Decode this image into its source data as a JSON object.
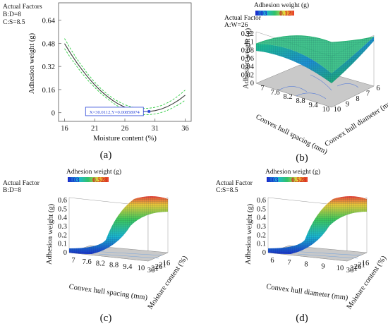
{
  "chart_data": [
    {
      "panel": "(a)",
      "type": "line",
      "title": "",
      "factors_text": [
        "Actual Factors",
        "B:D=8",
        "C:S=8.5"
      ],
      "xlabel": "Moisture content (%)",
      "ylabel": "Adhesion weight (g)",
      "xlim": [
        15,
        37
      ],
      "ylim": [
        -0.06,
        0.76
      ],
      "xticks": [
        "16",
        "21",
        "26",
        "31",
        "36"
      ],
      "yticks": [
        "0",
        "0.16",
        "0.32",
        "0.48",
        "0.64"
      ],
      "grid": false,
      "series": [
        {
          "style": "fit",
          "color": "#3a3a3a",
          "x": [
            16,
            17,
            18,
            19,
            20,
            21,
            22,
            23,
            24,
            25,
            26,
            27,
            28,
            29,
            30,
            31,
            32,
            33,
            34,
            35,
            36
          ],
          "y": [
            0.478,
            0.41,
            0.348,
            0.291,
            0.239,
            0.193,
            0.151,
            0.115,
            0.084,
            0.058,
            0.038,
            0.022,
            0.012,
            0.008,
            0.009,
            0.014,
            0.025,
            0.041,
            0.063,
            0.089,
            0.121
          ]
        },
        {
          "style": "ci-upper",
          "color": "#2ecc40",
          "x": [
            16,
            17,
            18,
            19,
            20,
            21,
            22,
            23,
            24,
            25,
            26,
            27,
            28,
            29,
            30,
            31,
            32,
            33,
            34,
            35,
            36
          ],
          "y": [
            0.513,
            0.441,
            0.375,
            0.315,
            0.26,
            0.211,
            0.168,
            0.131,
            0.1,
            0.075,
            0.055,
            0.041,
            0.032,
            0.029,
            0.031,
            0.037,
            0.049,
            0.067,
            0.091,
            0.12,
            0.156
          ]
        },
        {
          "style": "ci-lower",
          "color": "#2ecc40",
          "x": [
            16,
            17,
            18,
            19,
            20,
            21,
            22,
            23,
            24,
            25,
            26,
            27,
            28,
            29,
            30,
            31,
            32,
            33,
            34,
            35,
            36
          ],
          "y": [
            0.443,
            0.379,
            0.321,
            0.267,
            0.218,
            0.175,
            0.134,
            0.099,
            0.068,
            0.041,
            0.021,
            0.003,
            -0.008,
            -0.013,
            -0.013,
            -0.009,
            0.001,
            0.015,
            0.035,
            0.058,
            0.086
          ]
        }
      ],
      "annotation": {
        "text": "X=30.0112,Y=0.00858974",
        "x": 30.0112,
        "y": 0.00858974
      }
    },
    {
      "panel": "(b)",
      "type": "surface",
      "factors_text": [
        "Actual Factor",
        "A:W=26"
      ],
      "legend_title": "Adhesion weight (g)",
      "colorbar": {
        "min": "0.03",
        "max": "0.12"
      },
      "zlabel": "Adhesion weight (g)",
      "zticks": [
        "0",
        "0.02",
        "0.04",
        "0.06",
        "0.08",
        "0.1",
        "0.12"
      ],
      "xlabel": "Convex hull spacing (mm)",
      "xticks": [
        "7",
        "7.6",
        "8.2",
        "8.8",
        "9.4",
        "10"
      ],
      "ylabel": "Convex hull diameter (mm)",
      "yticks": [
        "6",
        "7",
        "8",
        "9",
        "10"
      ]
    },
    {
      "panel": "(c)",
      "type": "surface",
      "factors_text": [
        "Actual Factor",
        "B:D=8"
      ],
      "legend_title": "Adhesion weight (g)",
      "colorbar": {
        "min": "0.03",
        "max": "0.528"
      },
      "zlabel": "Adhesion weight (g)",
      "zticks": [
        "0",
        "0.1",
        "0.2",
        "0.3",
        "0.4",
        "0.5",
        "0.6"
      ],
      "xlabel": "Convex hull spacing (mm)",
      "xticks": [
        "7",
        "7.6",
        "8.2",
        "8.8",
        "9.4",
        "10"
      ],
      "ylabel": "Moisture content (%)",
      "yticks": [
        "16",
        "21",
        "26",
        "31",
        "36"
      ]
    },
    {
      "panel": "(d)",
      "type": "surface",
      "factors_text": [
        "Actual Factor",
        "C:S=8.5"
      ],
      "legend_title": "Adhesion weight (g)",
      "colorbar": {
        "min": "0.03",
        "max": "0.528"
      },
      "zlabel": "Adhesion weight (g)",
      "zticks": [
        "0",
        "0.1",
        "0.2",
        "0.3",
        "0.4",
        "0.5",
        "0.6"
      ],
      "xlabel": "Convex hull diameter (mm)",
      "xticks": [
        "6",
        "7",
        "8",
        "9",
        "10"
      ],
      "ylabel": "Moisture content (%)",
      "yticks": [
        "16",
        "21",
        "26",
        "31",
        "36"
      ]
    }
  ],
  "colors": {
    "low": "#1a2ccc",
    "mid": "#2fc16a",
    "high": "#e8382a",
    "ci": "#2ecc40",
    "annotation": "#2b45d8"
  }
}
